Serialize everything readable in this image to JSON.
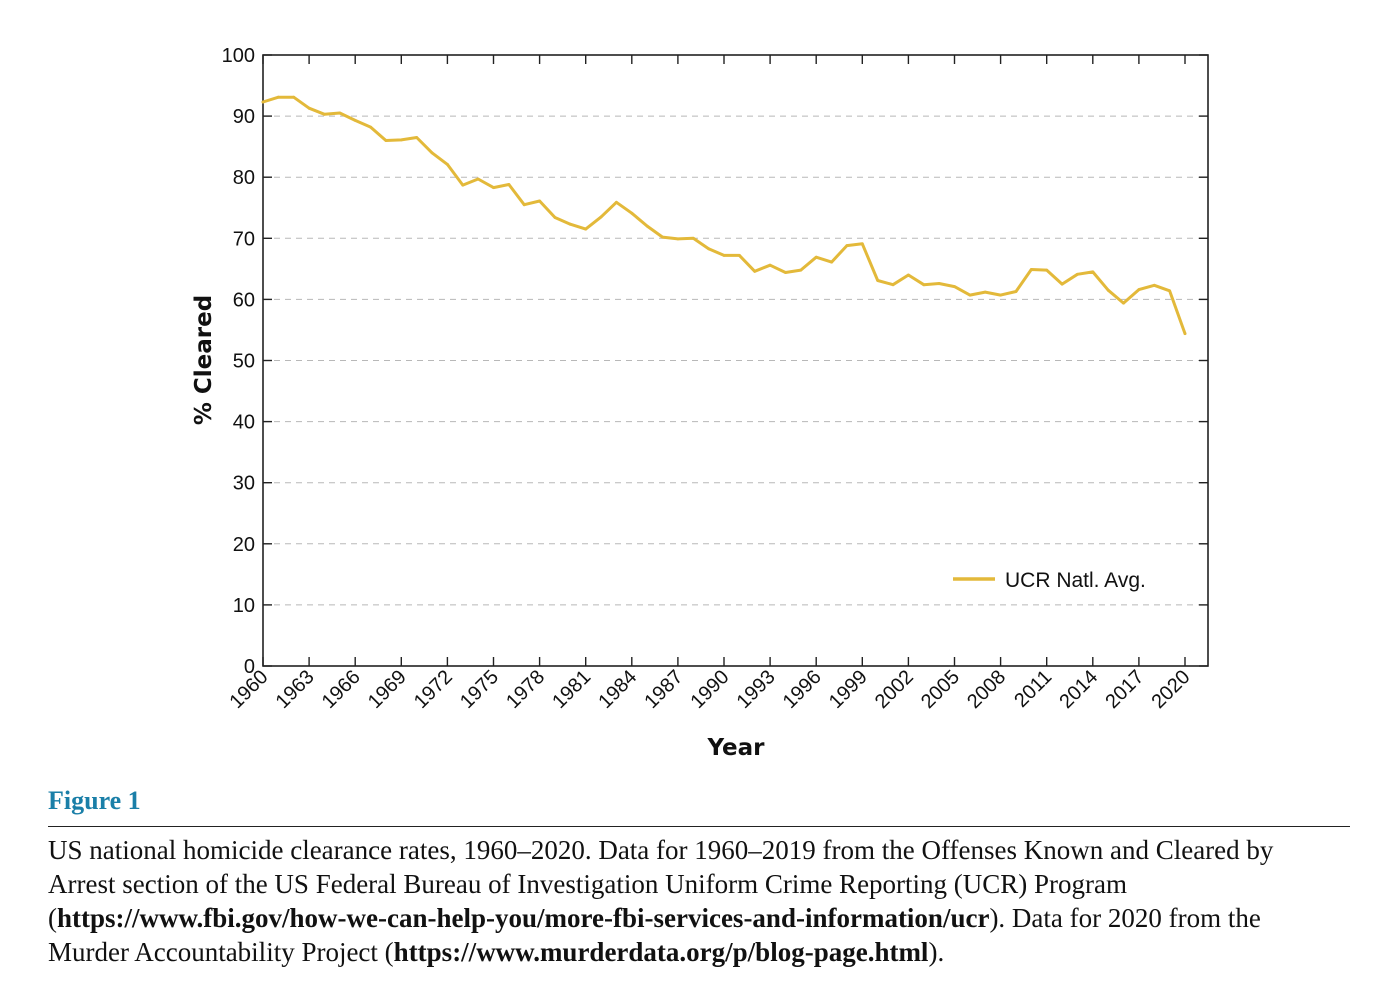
{
  "chart_data": {
    "type": "line",
    "xlabel": "Year",
    "ylabel": "% Cleared",
    "ylim": [
      0,
      100
    ],
    "xlim": [
      1960,
      2020
    ],
    "y_ticks": [
      0,
      10,
      20,
      30,
      40,
      50,
      60,
      70,
      80,
      90,
      100
    ],
    "x_tick_labels": [
      "1960",
      "1963",
      "1966",
      "1969",
      "1972",
      "1975",
      "1978",
      "1981",
      "1984",
      "1987",
      "1990",
      "1993",
      "1996",
      "1999",
      "2002",
      "2005",
      "2008",
      "2011",
      "2014",
      "2017",
      "2020"
    ],
    "grid": "horizontal-dashed",
    "legend_position": "bottom-right",
    "line_color": "#e3b93a",
    "series": [
      {
        "name": "UCR Natl. Avg.",
        "x": [
          1960,
          1961,
          1962,
          1963,
          1964,
          1965,
          1966,
          1967,
          1968,
          1969,
          1970,
          1971,
          1972,
          1973,
          1974,
          1975,
          1976,
          1977,
          1978,
          1979,
          1980,
          1981,
          1982,
          1983,
          1984,
          1985,
          1986,
          1987,
          1988,
          1989,
          1990,
          1991,
          1992,
          1993,
          1994,
          1995,
          1996,
          1997,
          1998,
          1999,
          2000,
          2001,
          2002,
          2003,
          2004,
          2005,
          2006,
          2007,
          2008,
          2009,
          2010,
          2011,
          2012,
          2013,
          2014,
          2015,
          2016,
          2017,
          2018,
          2019,
          2020
        ],
        "values": [
          92.3,
          93.1,
          93.1,
          91.3,
          90.3,
          90.5,
          89.3,
          88.2,
          86.0,
          86.1,
          86.5,
          84.0,
          82.1,
          78.7,
          79.7,
          78.3,
          78.8,
          75.5,
          76.1,
          73.4,
          72.3,
          71.5,
          73.5,
          75.9,
          74.1,
          72.0,
          70.2,
          69.9,
          70.0,
          68.3,
          67.2,
          67.2,
          64.6,
          65.6,
          64.4,
          64.8,
          66.9,
          66.1,
          68.8,
          69.1,
          63.1,
          62.4,
          64.0,
          62.4,
          62.6,
          62.1,
          60.7,
          61.2,
          60.7,
          61.3,
          64.9,
          64.8,
          62.5,
          64.1,
          64.5,
          61.5,
          59.4,
          61.6,
          62.3,
          61.4,
          54.4
        ]
      }
    ]
  },
  "figure": {
    "label": "Figure 1",
    "caption_part1": "US national homicide clearance rates, 1960–2020. Data for 1960–2019 from the Offenses Known and Cleared by Arrest section of the US Federal Bureau of Investigation Uniform Crime Reporting (UCR) Program (",
    "caption_link1": "https://www.fbi.gov/how-we-can-help-you/more-fbi-services-and-information/ucr",
    "caption_part2": "). Data for 2020 from the Murder Accountability Project (",
    "caption_link2": "https://www.murderdata.org/p/blog-page.html",
    "caption_part3": ")."
  }
}
